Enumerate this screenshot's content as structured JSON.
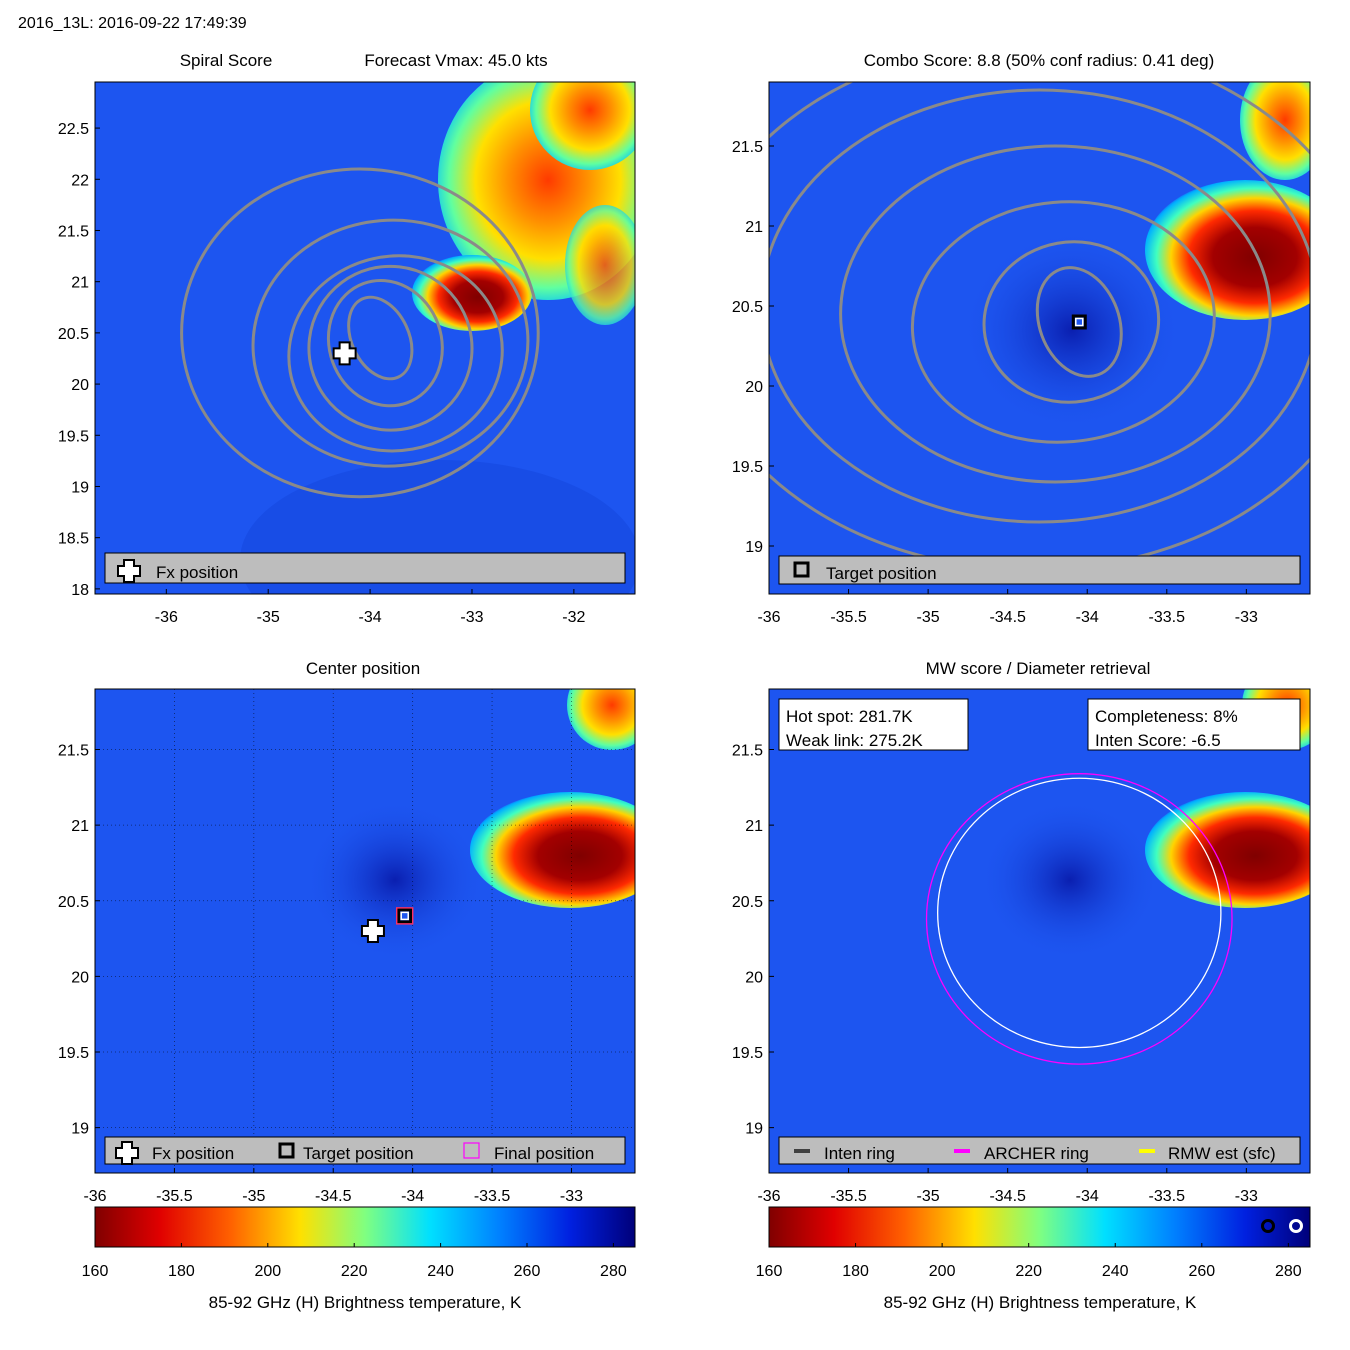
{
  "header": {
    "title": "2016_13L: 2016-09-22 17:49:39"
  },
  "colors": {
    "cold": "#0a2cd0",
    "background_field": "#1d55f0",
    "contour": "#8a8a8a",
    "legend_bg": "#bdbdbd",
    "archer_ring": "#ff00ff",
    "inten_ring": "#ffffff",
    "rmw": "#ffff00"
  },
  "chart_data": [
    {
      "id": "spiral",
      "type": "heatmap",
      "title_left": "Spiral Score",
      "title_right": "Forecast Vmax: 45.0 kts",
      "xlim": [
        -36.7,
        -31.4
      ],
      "ylim": [
        17.95,
        22.95
      ],
      "xticks": [
        -36,
        -35,
        -34,
        -33,
        -32
      ],
      "yticks": [
        18,
        18.5,
        19,
        19.5,
        20,
        20.5,
        21,
        21.5,
        22,
        22.5
      ],
      "contours": [
        {
          "cx": -33.9,
          "cy": 20.45,
          "rx": 0.28,
          "ry": 0.42,
          "rot": -25
        },
        {
          "cx": -33.85,
          "cy": 20.4,
          "rx": 0.55,
          "ry": 0.62,
          "rot": -20
        },
        {
          "cx": -33.8,
          "cy": 20.35,
          "rx": 0.8,
          "ry": 0.8,
          "rot": -15
        },
        {
          "cx": -33.75,
          "cy": 20.3,
          "rx": 1.05,
          "ry": 0.95,
          "rot": -10
        },
        {
          "cx": -33.8,
          "cy": 20.4,
          "rx": 1.35,
          "ry": 1.2,
          "rot": -5
        },
        {
          "cx": -34.1,
          "cy": 20.5,
          "rx": 1.75,
          "ry": 1.6,
          "rot": 0
        }
      ],
      "markers": [
        {
          "kind": "fx",
          "x": -34.25,
          "y": 20.3
        }
      ],
      "legend": [
        {
          "icon": "cross",
          "label": "Fx position"
        }
      ]
    },
    {
      "id": "combo",
      "type": "heatmap",
      "title": "Combo Score: 8.8  (50% conf radius: 0.41 deg)",
      "xlim": [
        -36,
        -32.6
      ],
      "ylim": [
        18.7,
        21.9
      ],
      "xticks": [
        -36,
        -35.5,
        -35,
        -34.5,
        -34,
        -33.5,
        -33
      ],
      "yticks": [
        19,
        19.5,
        20,
        20.5,
        21,
        21.5
      ],
      "contours": [
        {
          "cx": -34.05,
          "cy": 20.4,
          "rx": 0.25,
          "ry": 0.35,
          "rot": -20
        },
        {
          "cx": -34.1,
          "cy": 20.4,
          "rx": 0.55,
          "ry": 0.5,
          "rot": -10
        },
        {
          "cx": -34.15,
          "cy": 20.4,
          "rx": 0.95,
          "ry": 0.75,
          "rot": -5
        },
        {
          "cx": -34.2,
          "cy": 20.45,
          "rx": 1.35,
          "ry": 1.05,
          "rot": 0
        },
        {
          "cx": -34.3,
          "cy": 20.5,
          "rx": 1.75,
          "ry": 1.35,
          "rot": 0
        },
        {
          "cx": -34.35,
          "cy": 20.5,
          "rx": 2.15,
          "ry": 1.65,
          "rot": 0
        }
      ],
      "markers": [
        {
          "kind": "target",
          "x": -34.05,
          "y": 20.4
        }
      ],
      "legend": [
        {
          "icon": "square",
          "label": "Target position"
        }
      ]
    },
    {
      "id": "center",
      "type": "heatmap",
      "title": "Center position",
      "xlim": [
        -36,
        -32.6
      ],
      "ylim": [
        18.7,
        21.9
      ],
      "xticks": [
        -36,
        -35.5,
        -35,
        -34.5,
        -34,
        -33.5,
        -33
      ],
      "yticks": [
        19,
        19.5,
        20,
        20.5,
        21,
        21.5
      ],
      "gridlines": true,
      "markers": [
        {
          "kind": "fx",
          "x": -34.25,
          "y": 20.3
        },
        {
          "kind": "target",
          "x": -34.05,
          "y": 20.4
        },
        {
          "kind": "final",
          "x": -34.05,
          "y": 20.4
        }
      ],
      "legend": [
        {
          "icon": "cross",
          "label": "Fx position"
        },
        {
          "icon": "square",
          "label": "Target position"
        },
        {
          "icon": "magenta-square",
          "label": "Final position"
        }
      ],
      "colorbar": {
        "min": 160,
        "max": 285,
        "ticks": [
          160,
          180,
          200,
          220,
          240,
          260,
          280
        ],
        "label": "85-92 GHz (H) Brightness temperature, K"
      }
    },
    {
      "id": "mw",
      "type": "heatmap",
      "title": "MW score / Diameter retrieval",
      "xlim": [
        -36,
        -32.6
      ],
      "ylim": [
        18.7,
        21.9
      ],
      "xticks": [
        -36,
        -35.5,
        -35,
        -34.5,
        -34,
        -33.5,
        -33
      ],
      "yticks": [
        19,
        19.5,
        20,
        20.5,
        21,
        21.5
      ],
      "rings": [
        {
          "name": "archer",
          "cx": -34.05,
          "cy": 20.38,
          "r": 0.96
        },
        {
          "name": "inten",
          "cx": -34.05,
          "cy": 20.42,
          "r": 0.89
        }
      ],
      "info_left": [
        "Hot spot: 281.7K",
        "Weak link: 275.2K"
      ],
      "info_right": [
        "Completeness: 8%",
        "Inten Score: -6.5"
      ],
      "legend": [
        {
          "icon": "gray-line",
          "label": "Inten ring"
        },
        {
          "icon": "magenta-line",
          "label": "ARCHER ring"
        },
        {
          "icon": "yellow-line",
          "label": "RMW est (sfc)"
        }
      ],
      "colorbar": {
        "min": 160,
        "max": 285,
        "ticks": [
          160,
          180,
          200,
          220,
          240,
          260,
          280
        ],
        "label": "85-92 GHz (H) Brightness temperature, K"
      }
    }
  ]
}
